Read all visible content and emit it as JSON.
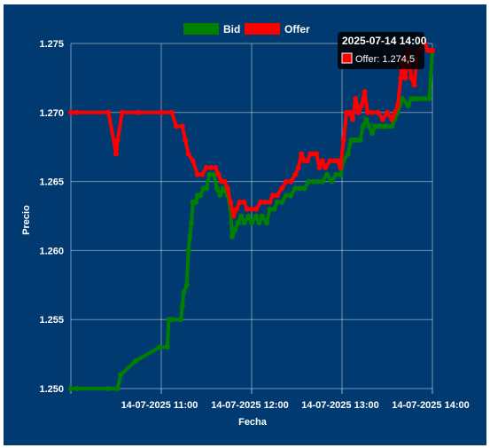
{
  "chart_data": {
    "type": "line",
    "title": "",
    "xlabel": "Fecha",
    "ylabel": "Precio",
    "ylim": [
      1.25,
      1.275
    ],
    "xlim": [
      "2025-07-14 10:00",
      "2025-07-14 14:00"
    ],
    "x_tick_labels": [
      "14-07-2025 11:00",
      "14-07-2025 12:00",
      "14-07-2025 13:00",
      "14-07-2025 14:00"
    ],
    "y_tick_labels": [
      "1.250",
      "1.255",
      "1.260",
      "1.265",
      "1.270",
      "1.275"
    ],
    "legend_position": "top",
    "grid": true,
    "series": [
      {
        "name": "Bid",
        "color": "#008000",
        "points": [
          [
            "10:00",
            1.25
          ],
          [
            "10:04",
            1.25
          ],
          [
            "10:25",
            1.25
          ],
          [
            "10:31",
            1.25
          ],
          [
            "10:33",
            1.251
          ],
          [
            "10:43",
            1.252
          ],
          [
            "10:59",
            1.253
          ],
          [
            "11:04",
            1.253
          ],
          [
            "11:05",
            1.255
          ],
          [
            "11:07",
            1.255
          ],
          [
            "11:13",
            1.255
          ],
          [
            "11:14",
            1.256
          ],
          [
            "11:15",
            1.257
          ],
          [
            "11:17",
            1.2575
          ],
          [
            "11:18",
            1.26
          ],
          [
            "11:19",
            1.261
          ],
          [
            "11:20",
            1.262
          ],
          [
            "11:21",
            1.2635
          ],
          [
            "11:23",
            1.2635
          ],
          [
            "11:24",
            1.264
          ],
          [
            "11:26",
            1.264
          ],
          [
            "11:28",
            1.2645
          ],
          [
            "11:30",
            1.2645
          ],
          [
            "11:32",
            1.2655
          ],
          [
            "11:35",
            1.2655
          ],
          [
            "11:37",
            1.2645
          ],
          [
            "11:39",
            1.264
          ],
          [
            "11:41",
            1.2645
          ],
          [
            "11:44",
            1.264
          ],
          [
            "11:46",
            1.263
          ],
          [
            "11:47",
            1.261
          ],
          [
            "11:49",
            1.2615
          ],
          [
            "11:51",
            1.262
          ],
          [
            "11:53",
            1.2625
          ],
          [
            "11:55",
            1.262
          ],
          [
            "11:58",
            1.2625
          ],
          [
            "12:00",
            1.262
          ],
          [
            "12:03",
            1.2625
          ],
          [
            "12:05",
            1.262
          ],
          [
            "12:07",
            1.2625
          ],
          [
            "12:10",
            1.262
          ],
          [
            "12:12",
            1.263
          ],
          [
            "12:15",
            1.263
          ],
          [
            "12:17",
            1.2635
          ],
          [
            "12:20",
            1.2635
          ],
          [
            "12:23",
            1.264
          ],
          [
            "12:26",
            1.264
          ],
          [
            "12:29",
            1.2645
          ],
          [
            "12:32",
            1.2645
          ],
          [
            "12:35",
            1.2645
          ],
          [
            "12:38",
            1.265
          ],
          [
            "12:41",
            1.265
          ],
          [
            "12:44",
            1.265
          ],
          [
            "12:47",
            1.265
          ],
          [
            "12:50",
            1.2655
          ],
          [
            "12:53",
            1.265
          ],
          [
            "12:56",
            1.2655
          ],
          [
            "12:59",
            1.2655
          ],
          [
            "13:01",
            1.2665
          ],
          [
            "13:04",
            1.267
          ],
          [
            "13:06",
            1.268
          ],
          [
            "13:08",
            1.268
          ],
          [
            "13:10",
            1.268
          ],
          [
            "13:12",
            1.268
          ],
          [
            "13:14",
            1.269
          ],
          [
            "13:16",
            1.2695
          ],
          [
            "13:18",
            1.269
          ],
          [
            "13:20",
            1.2685
          ],
          [
            "13:22",
            1.269
          ],
          [
            "13:24",
            1.269
          ],
          [
            "13:26",
            1.269
          ],
          [
            "13:28",
            1.269
          ],
          [
            "13:30",
            1.269
          ],
          [
            "13:33",
            1.269
          ],
          [
            "13:35",
            1.2695
          ],
          [
            "13:37",
            1.27
          ],
          [
            "13:40",
            1.271
          ],
          [
            "13:44",
            1.2705
          ],
          [
            "13:46",
            1.271
          ],
          [
            "13:48",
            1.271
          ],
          [
            "13:50",
            1.271
          ],
          [
            "13:52",
            1.271
          ],
          [
            "13:55",
            1.271
          ],
          [
            "13:58",
            1.271
          ],
          [
            "14:00",
            1.2745
          ]
        ]
      },
      {
        "name": "Offer",
        "color": "#ff0000",
        "points": [
          [
            "10:00",
            1.27
          ],
          [
            "10:04",
            1.27
          ],
          [
            "10:25",
            1.27
          ],
          [
            "10:30",
            1.267
          ],
          [
            "10:31",
            1.268
          ],
          [
            "10:34",
            1.27
          ],
          [
            "10:45",
            1.27
          ],
          [
            "11:00",
            1.27
          ],
          [
            "11:07",
            1.27
          ],
          [
            "11:10",
            1.269
          ],
          [
            "11:14",
            1.269
          ],
          [
            "11:16",
            1.268
          ],
          [
            "11:18",
            1.267
          ],
          [
            "11:21",
            1.2665
          ],
          [
            "11:24",
            1.2655
          ],
          [
            "11:27",
            1.2655
          ],
          [
            "11:30",
            1.266
          ],
          [
            "11:33",
            1.266
          ],
          [
            "11:36",
            1.266
          ],
          [
            "11:38",
            1.2655
          ],
          [
            "11:40",
            1.265
          ],
          [
            "11:42",
            1.265
          ],
          [
            "11:44",
            1.2645
          ],
          [
            "11:46",
            1.2635
          ],
          [
            "11:48",
            1.2625
          ],
          [
            "11:50",
            1.263
          ],
          [
            "11:52",
            1.2635
          ],
          [
            "11:55",
            1.2635
          ],
          [
            "11:57",
            1.263
          ],
          [
            "12:00",
            1.263
          ],
          [
            "12:03",
            1.263
          ],
          [
            "12:06",
            1.2635
          ],
          [
            "12:09",
            1.2635
          ],
          [
            "12:12",
            1.2635
          ],
          [
            "12:14",
            1.264
          ],
          [
            "12:17",
            1.264
          ],
          [
            "12:20",
            1.2645
          ],
          [
            "12:23",
            1.265
          ],
          [
            "12:26",
            1.265
          ],
          [
            "12:29",
            1.2655
          ],
          [
            "12:31",
            1.266
          ],
          [
            "12:33",
            1.267
          ],
          [
            "12:35",
            1.2665
          ],
          [
            "12:37",
            1.2665
          ],
          [
            "12:39",
            1.267
          ],
          [
            "12:41",
            1.267
          ],
          [
            "12:43",
            1.267
          ],
          [
            "12:45",
            1.266
          ],
          [
            "12:47",
            1.2665
          ],
          [
            "12:49",
            1.266
          ],
          [
            "12:52",
            1.2665
          ],
          [
            "12:55",
            1.2665
          ],
          [
            "12:57",
            1.2665
          ],
          [
            "12:59",
            1.266
          ],
          [
            "13:01",
            1.268
          ],
          [
            "13:03",
            1.27
          ],
          [
            "13:05",
            1.27
          ],
          [
            "13:07",
            1.2695
          ],
          [
            "13:09",
            1.271
          ],
          [
            "13:11",
            1.27
          ],
          [
            "13:13",
            1.2705
          ],
          [
            "13:15",
            1.2715
          ],
          [
            "13:17",
            1.27
          ],
          [
            "13:20",
            1.27
          ],
          [
            "13:24",
            1.27
          ],
          [
            "13:27",
            1.2695
          ],
          [
            "13:30",
            1.27
          ],
          [
            "13:33",
            1.2695
          ],
          [
            "13:35",
            1.27
          ],
          [
            "13:37",
            1.2705
          ],
          [
            "13:39",
            1.2725
          ],
          [
            "13:40",
            1.274
          ],
          [
            "13:42",
            1.2725
          ],
          [
            "13:44",
            1.2745
          ],
          [
            "13:46",
            1.2725
          ],
          [
            "13:48",
            1.272
          ],
          [
            "13:50",
            1.2745
          ],
          [
            "13:52",
            1.2745
          ],
          [
            "13:55",
            1.275
          ],
          [
            "13:57",
            1.2745
          ],
          [
            "13:59",
            1.2745
          ],
          [
            "14:00",
            1.2745
          ]
        ]
      }
    ],
    "tooltip": {
      "title": "2025-07-14 14:00",
      "label": "Offer: 1.274,5"
    }
  }
}
